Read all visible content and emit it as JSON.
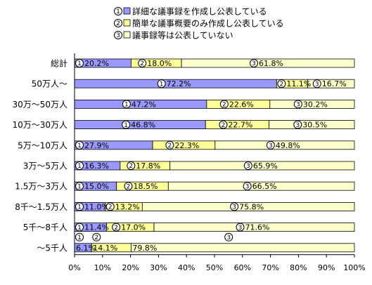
{
  "chart_data": {
    "type": "bar",
    "orientation": "horizontal",
    "stacked": true,
    "percent": true,
    "categories": [
      "総計",
      "50万人〜",
      "30万〜50万人",
      "10万〜30万人",
      "5万〜10万人",
      "3万〜5万人",
      "1.5万〜3万人",
      "8千〜1.5万人",
      "5千〜8千人",
      "〜5千人"
    ],
    "series": [
      {
        "name": "詳細な議事録を作成し公表している",
        "marker": "1",
        "color": "#9999ff",
        "values": [
          20.2,
          72.2,
          47.2,
          46.8,
          27.9,
          16.3,
          15.0,
          11.0,
          11.4,
          6.1
        ]
      },
      {
        "name": "簡単な議事概要のみ作成し公表している",
        "marker": "2",
        "color": "#ffff99",
        "values": [
          18.0,
          11.1,
          22.6,
          22.7,
          22.3,
          17.8,
          18.5,
          13.2,
          17.0,
          14.1
        ]
      },
      {
        "name": "議事録等は公表していない",
        "marker": "3",
        "color": "#ffffcc",
        "values": [
          61.8,
          16.7,
          30.2,
          30.5,
          49.8,
          65.9,
          66.5,
          75.8,
          71.6,
          79.8
        ]
      }
    ],
    "data_labels": [
      [
        "20.2%",
        "18.0%",
        "61.8%"
      ],
      [
        "72.2%",
        "11.1%",
        "16.7%"
      ],
      [
        "47.2%",
        "22.6%",
        "30.2%"
      ],
      [
        "46.8%",
        "22.7%",
        "30.5%"
      ],
      [
        "27.9%",
        "22.3%",
        "49.8%"
      ],
      [
        "16.3%",
        "17.8%",
        "65.9%"
      ],
      [
        "15.0%",
        "18.5%",
        "66.5%"
      ],
      [
        "11.0%",
        "13.2%",
        "75.8%"
      ],
      [
        "11.4%",
        "17.0%",
        "71.6%"
      ],
      [
        "6.1%",
        "14.1%",
        "79.8%"
      ]
    ],
    "xlim": [
      0,
      100
    ],
    "xticks": [
      "0%",
      "10%",
      "20%",
      "30%",
      "40%",
      "50%",
      "60%",
      "70%",
      "80%",
      "90%",
      "100%"
    ],
    "grid": false,
    "legend": "top"
  }
}
